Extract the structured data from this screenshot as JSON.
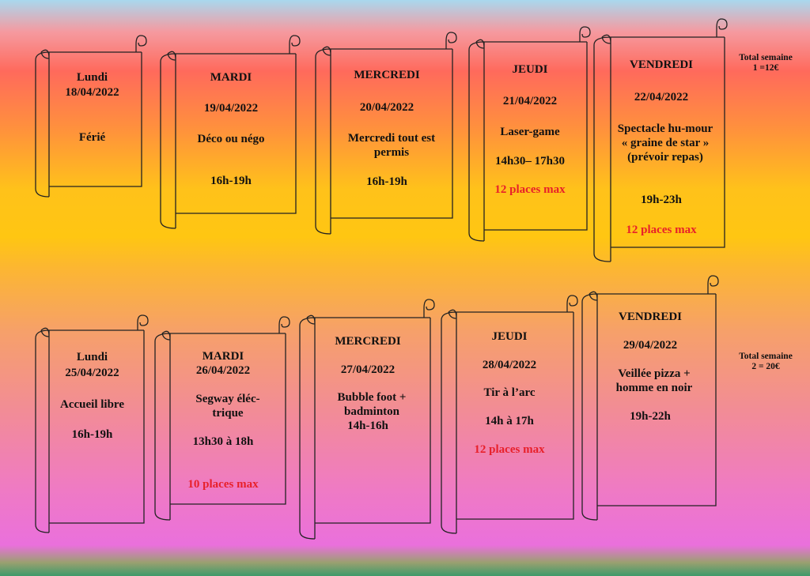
{
  "week1": {
    "days": [
      {
        "day": "Lundi",
        "date": "18/04/2022",
        "activity": "Férié",
        "hours": "",
        "note": ""
      },
      {
        "day": "MARDI",
        "date": "19/04/2022",
        "activity": "Déco ou négo",
        "hours": "16h-19h",
        "note": ""
      },
      {
        "day": "MERCREDI",
        "date": "20/04/2022",
        "activity": "Mercredi tout est permis",
        "hours": "16h-19h",
        "note": ""
      },
      {
        "day": "JEUDI",
        "date": "21/04/2022",
        "activity": "Laser-game",
        "hours": "14h30– 17h30",
        "note": "12 places max"
      },
      {
        "day": "VENDREDI",
        "date": "22/04/2022",
        "activity": "Spectacle hu-mour « graine de star » (prévoir repas)",
        "hours": "19h-23h",
        "note": "12 places max"
      }
    ],
    "total_line1": "Total semaine",
    "total_line2": "1 =12€"
  },
  "week2": {
    "days": [
      {
        "day": "Lundi",
        "date": "25/04/2022",
        "activity": "Accueil libre",
        "hours": "16h-19h",
        "note": ""
      },
      {
        "day": "MARDI",
        "date": "26/04/2022",
        "activity": "Segway éléc-trique",
        "hours": "13h30 à 18h",
        "note": "10 places max"
      },
      {
        "day": "MERCREDI",
        "date": "27/04/2022",
        "activity": "Bubble foot + badminton",
        "hours": "14h-16h",
        "note": ""
      },
      {
        "day": "JEUDI",
        "date": "28/04/2022",
        "activity": "Tir à l’arc",
        "hours": "14h à 17h",
        "note": "12 places max"
      },
      {
        "day": "VENDREDI",
        "date": "29/04/2022",
        "activity": "Veillée pizza + homme en noir",
        "hours": "19h-22h",
        "note": ""
      }
    ],
    "total_line1": "Total semaine",
    "total_line2": "2 = 20€"
  }
}
